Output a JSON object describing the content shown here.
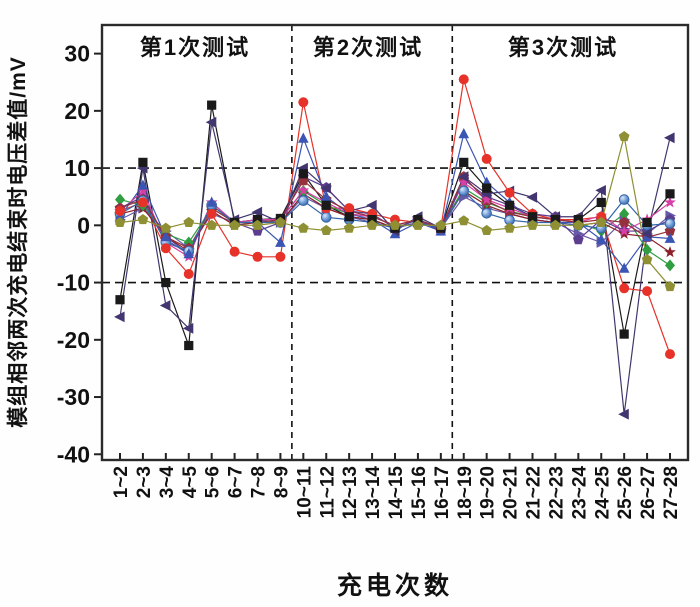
{
  "figure": {
    "y_axis_title": "模组相邻两次充电结束时电压差值/mV",
    "x_axis_title": "充电次数",
    "region_labels": [
      "第1次测试",
      "第2次测试",
      "第3次测试"
    ]
  },
  "chart_data": {
    "type": "line",
    "title": "",
    "xlabel": "充电次数",
    "ylabel": "模组相邻两次充电结束时电压差值/mV",
    "ylim": [
      -41,
      35
    ],
    "yticks": [
      30,
      20,
      10,
      0,
      -10,
      -20,
      -30,
      -40
    ],
    "reference_lines_y": [
      10,
      -10
    ],
    "separators_after_index": [
      7,
      14
    ],
    "grid": false,
    "legend_position": "none",
    "region_labels": [
      {
        "text": "第1次测试",
        "span": [
          0,
          7
        ]
      },
      {
        "text": "第2次测试",
        "span": [
          8,
          14
        ]
      },
      {
        "text": "第3次测试",
        "span": [
          15,
          24
        ]
      }
    ],
    "categories": [
      "1~2",
      "2~3",
      "3~4",
      "4~5",
      "5~6",
      "6~7",
      "7~8",
      "8~9",
      "10~11",
      "11~12",
      "12~13",
      "13~14",
      "14~15",
      "15~16",
      "16~17",
      "18~19",
      "19~20",
      "20~21",
      "21~22",
      "22~23",
      "23~24",
      "24~25",
      "25~26",
      "26~27",
      "27~28"
    ],
    "series": [
      {
        "name": "module-black-square",
        "marker": "square",
        "color": "#1a1a1a",
        "values": [
          -13,
          11,
          -10,
          -21,
          21,
          0.5,
          1,
          1.2,
          9,
          3.5,
          1.5,
          1,
          -0.5,
          1,
          -0.5,
          11,
          6.5,
          3.5,
          1.5,
          1,
          1,
          4,
          -19,
          0.5,
          5.5
        ]
      },
      {
        "name": "module-red-circle",
        "marker": "circle",
        "color": "#e63228",
        "values": [
          2.5,
          4,
          -4,
          -8.5,
          2,
          -4.6,
          -5.5,
          -5.5,
          21.5,
          3,
          3,
          2,
          1,
          0.5,
          -0.5,
          25.5,
          11.6,
          5.7,
          2,
          1,
          1,
          1.5,
          -11,
          -11.5,
          -22.5
        ]
      },
      {
        "name": "module-blue-triangle-up",
        "marker": "triangle-up",
        "color": "#3a55b4",
        "values": [
          1.5,
          7,
          -2,
          -5,
          4,
          0.5,
          0.5,
          -3,
          15.2,
          5,
          2,
          1,
          -1.5,
          0.5,
          -1,
          16,
          7.5,
          4,
          1,
          0.5,
          0.5,
          -2.5,
          -7.5,
          -2,
          -2.3
        ]
      },
      {
        "name": "module-navy-triangle-left",
        "marker": "triangle-left",
        "color": "#433670",
        "values": [
          -16,
          10,
          -14,
          -18,
          18,
          1,
          2.3,
          0.5,
          10,
          6.5,
          2.5,
          3.5,
          -1,
          1.5,
          -0.5,
          8.5,
          5.5,
          6,
          4.9,
          1.5,
          1.5,
          6.1,
          -33,
          -1.5,
          15.3
        ]
      },
      {
        "name": "module-purple-triangle-right",
        "marker": "triangle-right",
        "color": "#6659a8",
        "values": [
          1,
          3,
          -1,
          -4,
          2,
          0.5,
          1,
          0.5,
          5,
          3,
          1.5,
          0.5,
          -0.5,
          0.5,
          -0.5,
          5,
          3,
          2,
          1,
          0.5,
          -1.5,
          -3,
          1,
          -1.5,
          1.7
        ]
      },
      {
        "name": "module-green-diamond",
        "marker": "diamond",
        "color": "#2f9e41",
        "values": [
          4.5,
          3.5,
          -1.5,
          -3,
          3,
          0.5,
          0.5,
          1,
          6,
          3.5,
          2,
          1.5,
          0,
          1,
          -0.5,
          6.5,
          4,
          2.5,
          1.5,
          1,
          0.5,
          -1,
          2,
          -4.3,
          -7
        ]
      },
      {
        "name": "module-maroon-star",
        "marker": "star",
        "color": "#8c1f28",
        "values": [
          2,
          3,
          -2,
          -4.5,
          2.5,
          0,
          0.5,
          0.5,
          5.5,
          3,
          1.5,
          1,
          -0.5,
          0.5,
          -0.5,
          6,
          3.5,
          2,
          1,
          0.5,
          0,
          0.5,
          -1.5,
          -2,
          -4.7
        ]
      },
      {
        "name": "module-magenta-star",
        "marker": "star",
        "color": "#d63fa6",
        "values": [
          2.5,
          6,
          -3,
          -5.5,
          4,
          0.5,
          1,
          1,
          6.1,
          4,
          2,
          1.5,
          0,
          1,
          -0.5,
          7.5,
          4.5,
          3,
          1.5,
          1,
          0.5,
          1.7,
          -1,
          1,
          4
        ]
      },
      {
        "name": "module-violet-pentagon",
        "marker": "pentagon",
        "color": "#5c3d8f",
        "values": [
          3,
          5,
          -2.5,
          -5,
          3.5,
          0.5,
          -1,
          0.5,
          8.5,
          6.6,
          2.5,
          2,
          -0.5,
          1,
          -1,
          8,
          5,
          3.5,
          2,
          1.5,
          -2.5,
          1,
          -1,
          -1,
          1
        ]
      },
      {
        "name": "module-darkred-pentagon",
        "marker": "pentagon",
        "color": "#96303c",
        "values": [
          3,
          4.5,
          -2,
          -4,
          3,
          0.5,
          0.5,
          1,
          7.8,
          4.5,
          2.5,
          1.5,
          0,
          1,
          -0.5,
          8.5,
          4.3,
          2.3,
          1.5,
          1,
          0.5,
          1,
          0.5,
          -2.1,
          -1
        ]
      },
      {
        "name": "module-blue-sphere",
        "marker": "sphere",
        "color": "#3465a8",
        "values": [
          2,
          4.3,
          -3,
          -4.5,
          3.5,
          0.5,
          0.5,
          0.5,
          4.3,
          1.4,
          1,
          0.5,
          -0.5,
          0.5,
          -0.5,
          6,
          2.1,
          0.9,
          0.5,
          0.5,
          0,
          -0.5,
          4.5,
          0,
          0.3
        ]
      },
      {
        "name": "module-olive-pentagon",
        "marker": "pentagon",
        "color": "#8f8f33",
        "values": [
          0.5,
          1,
          -0.5,
          0.5,
          0,
          0,
          0,
          0.5,
          -0.5,
          -0.9,
          -0.5,
          0,
          0,
          0,
          0,
          0.8,
          -0.9,
          -0.5,
          0,
          0,
          0,
          0.5,
          15.5,
          -6,
          -10.7
        ]
      }
    ]
  }
}
